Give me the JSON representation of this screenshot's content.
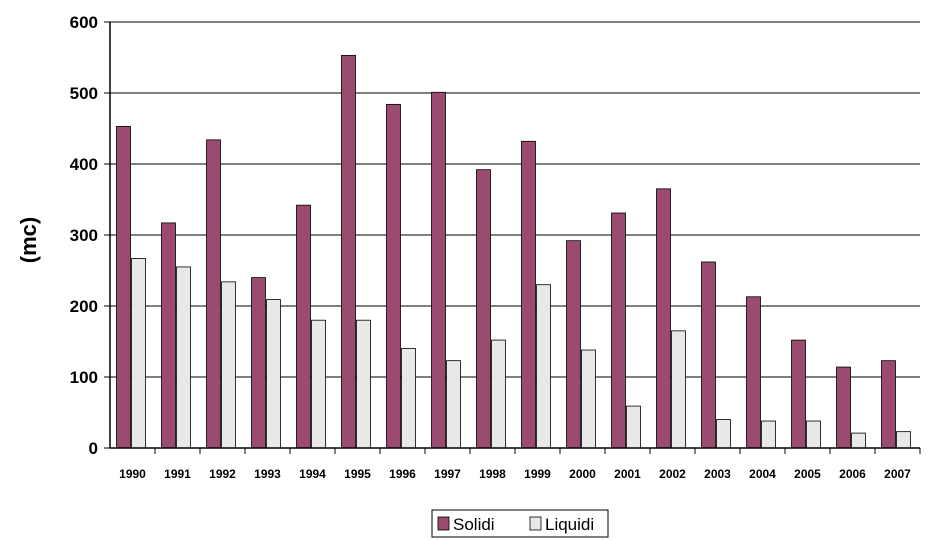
{
  "chart_data": {
    "type": "bar",
    "ylabel": "(mc)",
    "xlabel": "",
    "ylim": [
      0,
      600
    ],
    "yticks": [
      0,
      100,
      200,
      300,
      400,
      500,
      600
    ],
    "grid": "horizontal",
    "legend_placement": "bottom-center",
    "categories": [
      "1990",
      "1991",
      "1992",
      "1993",
      "1994",
      "1995",
      "1996",
      "1997",
      "1998",
      "1999",
      "2000",
      "2001",
      "2002",
      "2003",
      "2004",
      "2005",
      "2006",
      "2007"
    ],
    "series": [
      {
        "name": "Solidi",
        "color": "#9C4B70",
        "values": [
          453,
          317,
          434,
          240,
          342,
          553,
          484,
          501,
          392,
          432,
          292,
          331,
          365,
          262,
          213,
          152,
          114,
          123
        ]
      },
      {
        "name": "Liquidi",
        "color": "#E8E8E8",
        "values": [
          267,
          255,
          234,
          209,
          180,
          180,
          140,
          123,
          152,
          230,
          138,
          59,
          165,
          40,
          38,
          38,
          21,
          23
        ]
      }
    ]
  }
}
